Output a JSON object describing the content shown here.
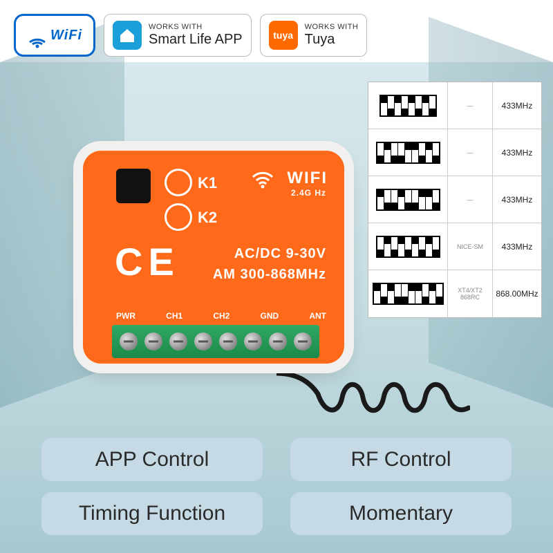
{
  "colors": {
    "device": "#ff6a1a",
    "device_shell": "#f1f0ee",
    "terminal": "#1c8a4a",
    "wifi_badge_border": "#0066cc",
    "smartlife": "#1a9fd8",
    "tuya": "#ff6a00",
    "pill_bg": "#c5dae4"
  },
  "wifi_badge": {
    "text": "WiFi"
  },
  "badges": [
    {
      "works": "WORKS WITH",
      "name": "Smart Life APP",
      "icon": "smartlife"
    },
    {
      "works": "WORKS WITH",
      "name": "Tuya",
      "icon": "tuya"
    }
  ],
  "device": {
    "k1": "K1",
    "k2": "K2",
    "wifi": "WIFI",
    "wifi_sub": "2.4G Hz",
    "ce": "CE",
    "power": "AC/DC 9-30V",
    "freq": "AM 300-868MHz",
    "terminals": [
      "PWR",
      "CH1",
      "CH2",
      "GND",
      "ANT"
    ]
  },
  "compat": [
    {
      "pattern": "udududud",
      "brand": "—",
      "freq": "433MHz"
    },
    {
      "pattern": "dudduudud",
      "brand": "—",
      "freq": "433MHz"
    },
    {
      "pattern": "uddudduud",
      "brand": "—",
      "freq": "433MHz"
    },
    {
      "pattern": "dudududud",
      "brand": "NICE-SM",
      "freq": "433MHz"
    },
    {
      "pattern": "ududduudud",
      "brand": "XT4/XT2 868RC",
      "freq": "868.00MHz"
    }
  ],
  "features": [
    "APP Control",
    "RF Control",
    "Timing Function",
    "Momentary"
  ]
}
